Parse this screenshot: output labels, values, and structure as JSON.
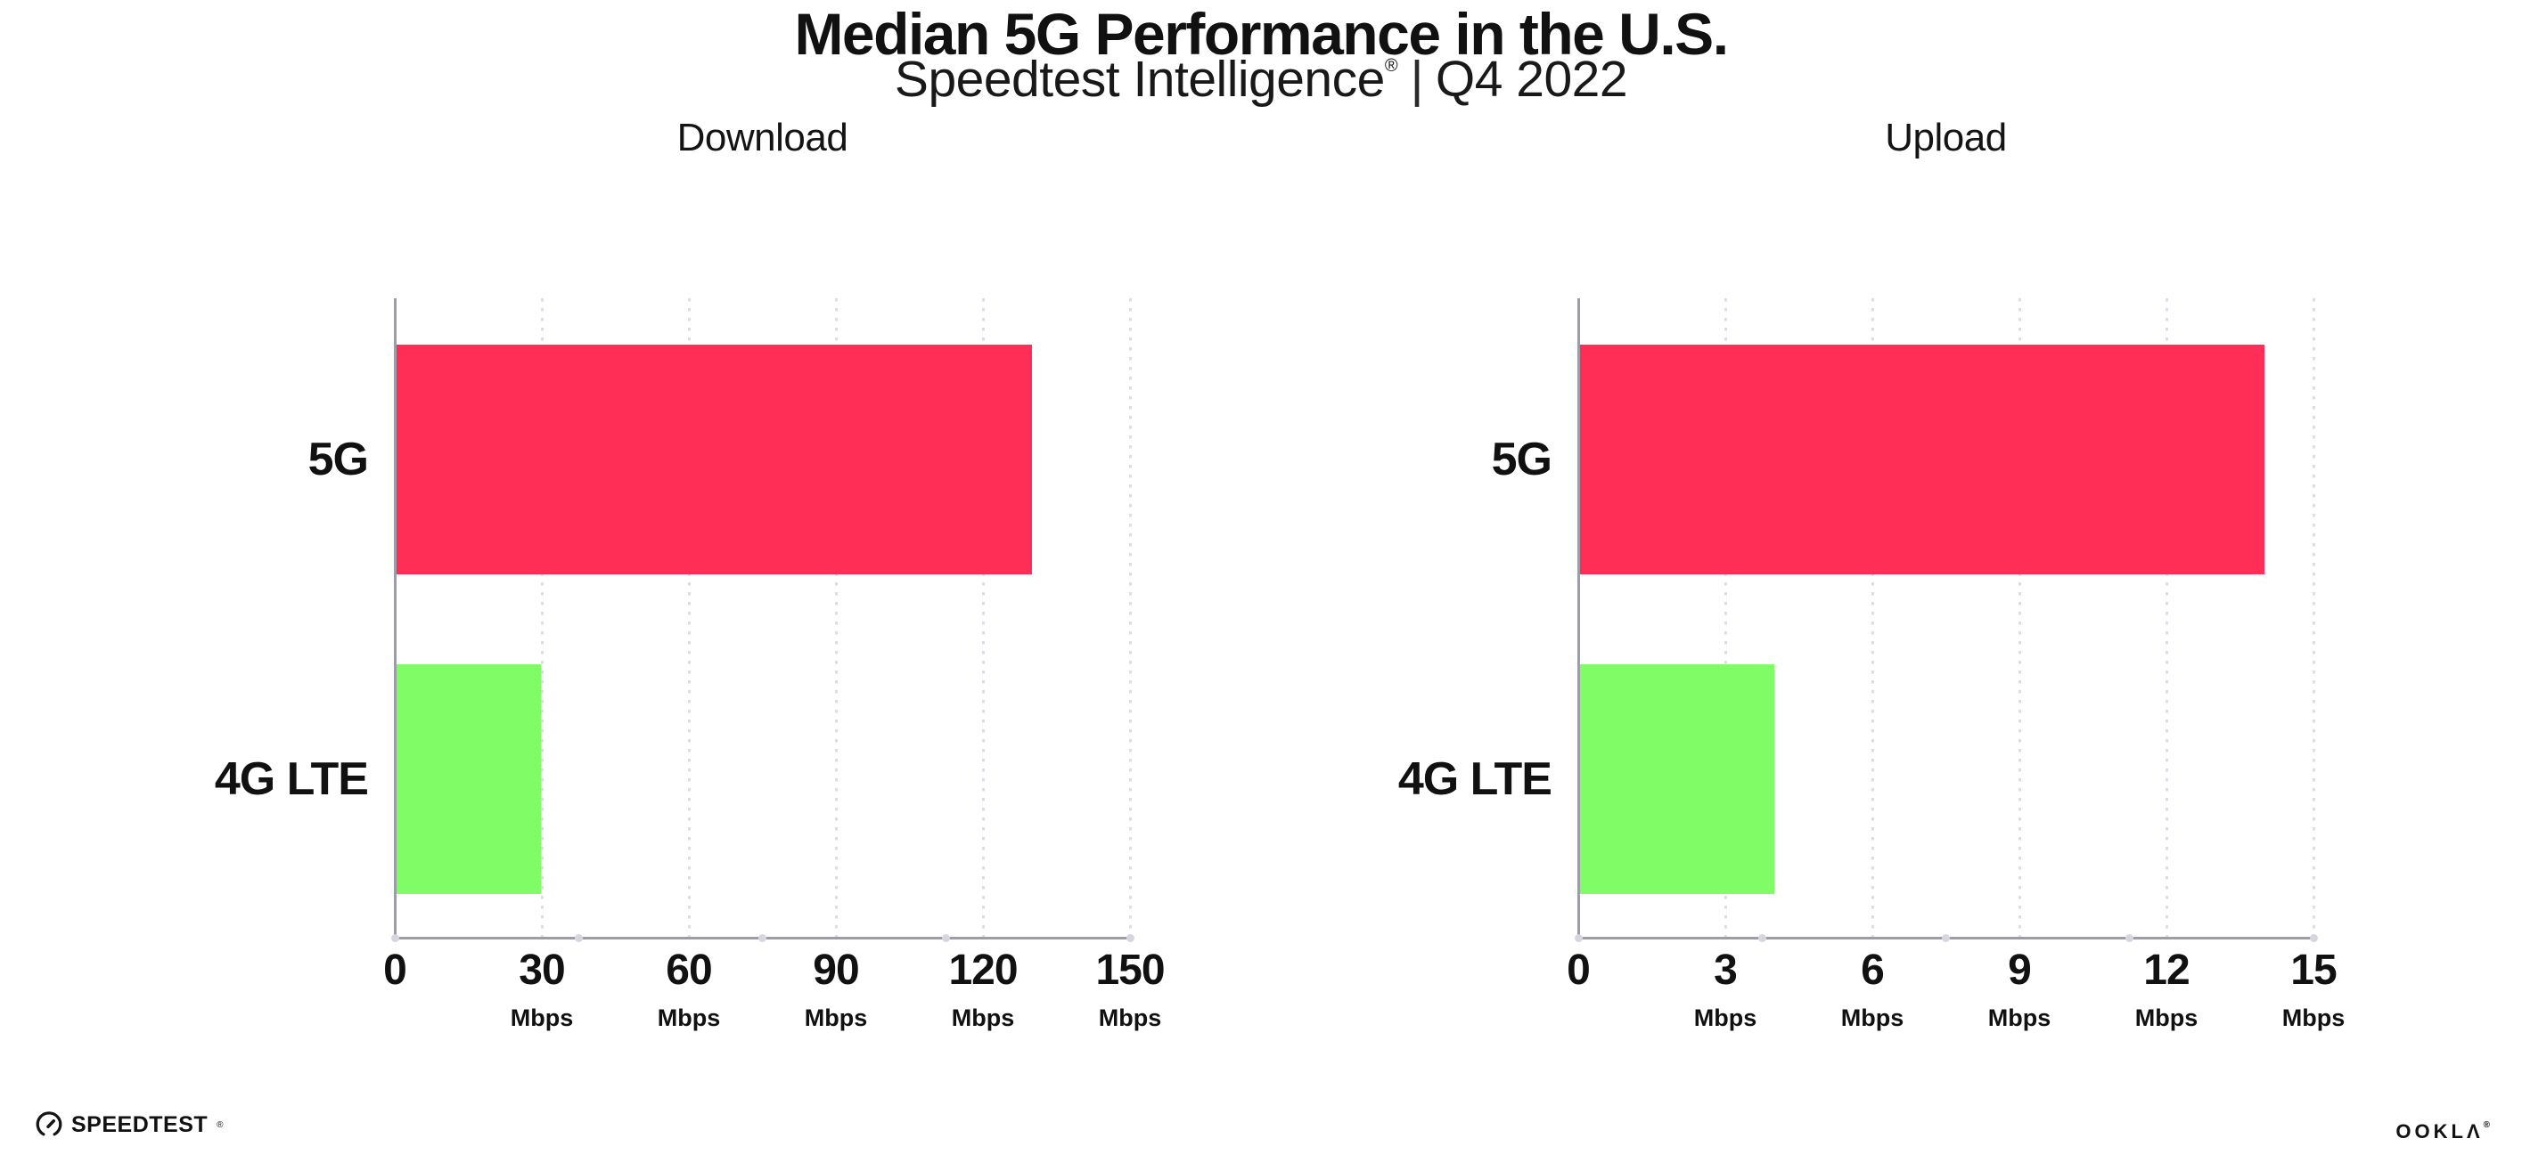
{
  "header": {
    "title": "Median 5G Performance in the U.S.",
    "subtitle": {
      "brand": "Speedtest Intelligence",
      "reg": "®",
      "separator": "|",
      "period": "Q4 2022"
    }
  },
  "footer": {
    "speedtest": {
      "label": "SPEEDTEST",
      "reg": "®",
      "icon": "speedtest-gauge-icon"
    },
    "ookla": {
      "label": "OOKLΛ",
      "reg": "®"
    }
  },
  "colors": {
    "bar_5g": "#FF2E56",
    "bar_4g_lte": "#80FC66",
    "axis": "#9D9DA6",
    "gridline_dots": "#DCDCE8",
    "axis_tick_dots": "#D6D6E2",
    "text": "#111111",
    "background": "#FFFFFF"
  },
  "chart_data": [
    {
      "type": "bar",
      "orientation": "horizontal",
      "title": "Download",
      "categories": [
        "5G",
        "4G LTE"
      ],
      "values": [
        130,
        29.8
      ],
      "unit": "Mbps",
      "xlim": [
        0,
        150
      ],
      "xticks": [
        0,
        30,
        60,
        90,
        120,
        150
      ],
      "tick_unit_label": "Mbps",
      "bar_colors": [
        "#FF2E56",
        "#80FC66"
      ],
      "grid": "dotted vertical gridline at each tick",
      "legend": "none"
    },
    {
      "type": "bar",
      "orientation": "horizontal",
      "title": "Upload",
      "categories": [
        "5G",
        "4G LTE"
      ],
      "values": [
        14,
        4
      ],
      "unit": "Mbps",
      "xlim": [
        0,
        15
      ],
      "xticks": [
        0,
        3,
        6,
        9,
        12,
        15
      ],
      "tick_unit_label": "Mbps",
      "bar_colors": [
        "#FF2E56",
        "#80FC66"
      ],
      "grid": "dotted vertical gridline at each tick",
      "legend": "none"
    }
  ]
}
